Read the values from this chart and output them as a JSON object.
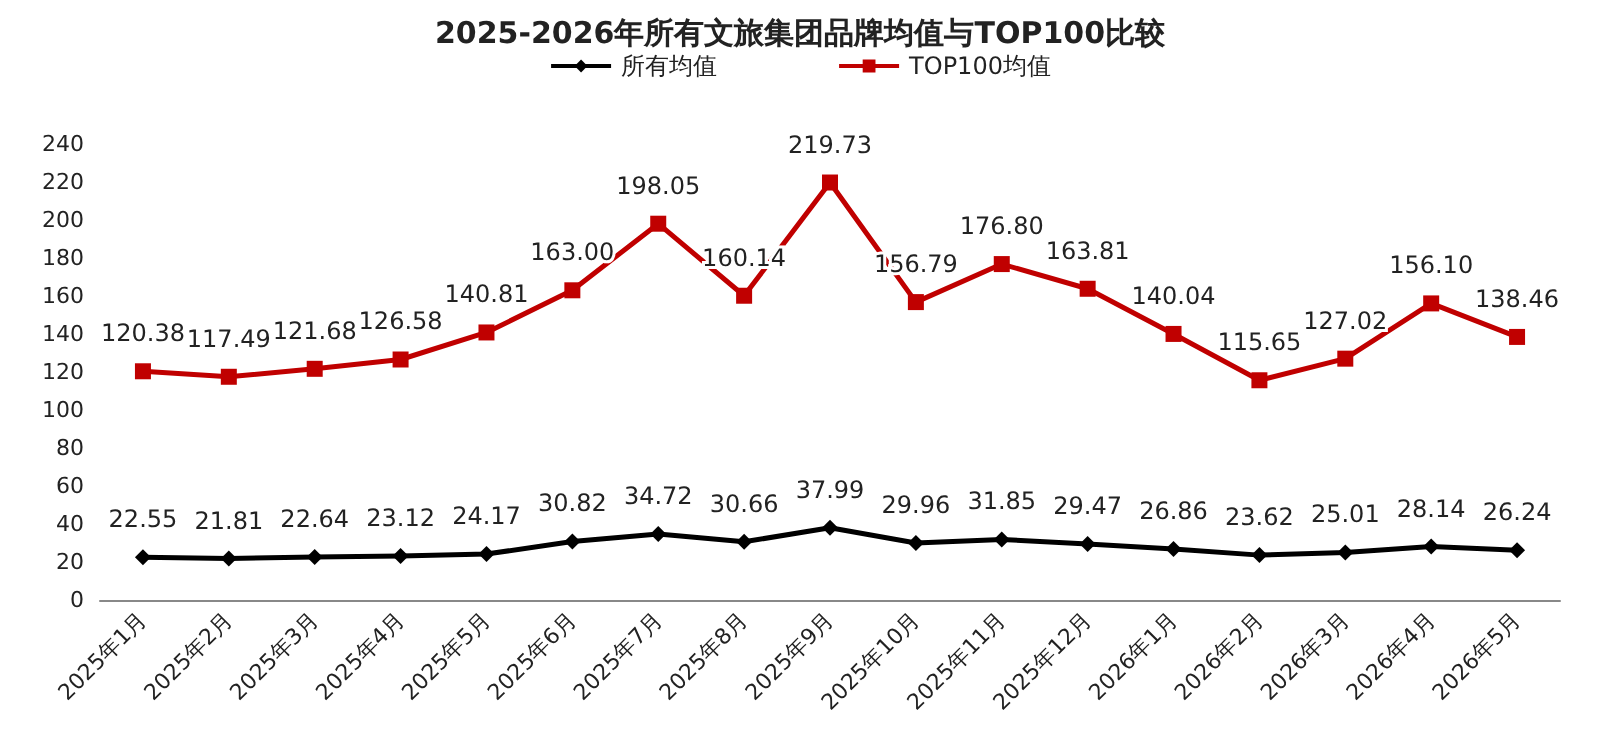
{
  "chart_data": {
    "type": "line",
    "title": "2025-2026年所有文旅集团品牌均值与TOP100比较",
    "categories": [
      "2025年1月",
      "2025年2月",
      "2025年3月",
      "2025年4月",
      "2025年5月",
      "2025年6月",
      "2025年7月",
      "2025年8月",
      "2025年9月",
      "2025年10月",
      "2025年11月",
      "2025年12月",
      "2026年1月",
      "2026年2月",
      "2026年3月",
      "2026年4月",
      "2026年5月"
    ],
    "series": [
      {
        "name": "所有均值",
        "color": "#000000",
        "marker": "diamond",
        "values": [
          22.55,
          21.81,
          22.64,
          23.12,
          24.17,
          30.82,
          34.72,
          30.66,
          37.99,
          29.96,
          31.85,
          29.47,
          26.86,
          23.62,
          25.01,
          28.14,
          26.24
        ]
      },
      {
        "name": "TOP100均值",
        "color": "#c00000",
        "marker": "square",
        "values": [
          120.38,
          117.49,
          121.68,
          126.58,
          140.81,
          163.0,
          198.05,
          160.14,
          219.73,
          156.79,
          176.8,
          163.81,
          140.04,
          115.65,
          127.02,
          156.1,
          138.46
        ],
        "value_labels": [
          "120.38",
          "117.49",
          "121.68",
          "126.58",
          "140.81",
          "163.00",
          "198.05",
          "160.14",
          "219.73",
          "156.79",
          "176.80",
          "163.81",
          "140.04",
          "115.65",
          "127.02",
          "156.10",
          "138.46"
        ]
      }
    ],
    "ylim": [
      0,
      240
    ],
    "yticks": [
      0,
      20,
      40,
      60,
      80,
      100,
      120,
      140,
      160,
      180,
      200,
      220,
      240
    ],
    "grid": false,
    "legend": "top",
    "data_labels": true,
    "line_style": "solid"
  }
}
